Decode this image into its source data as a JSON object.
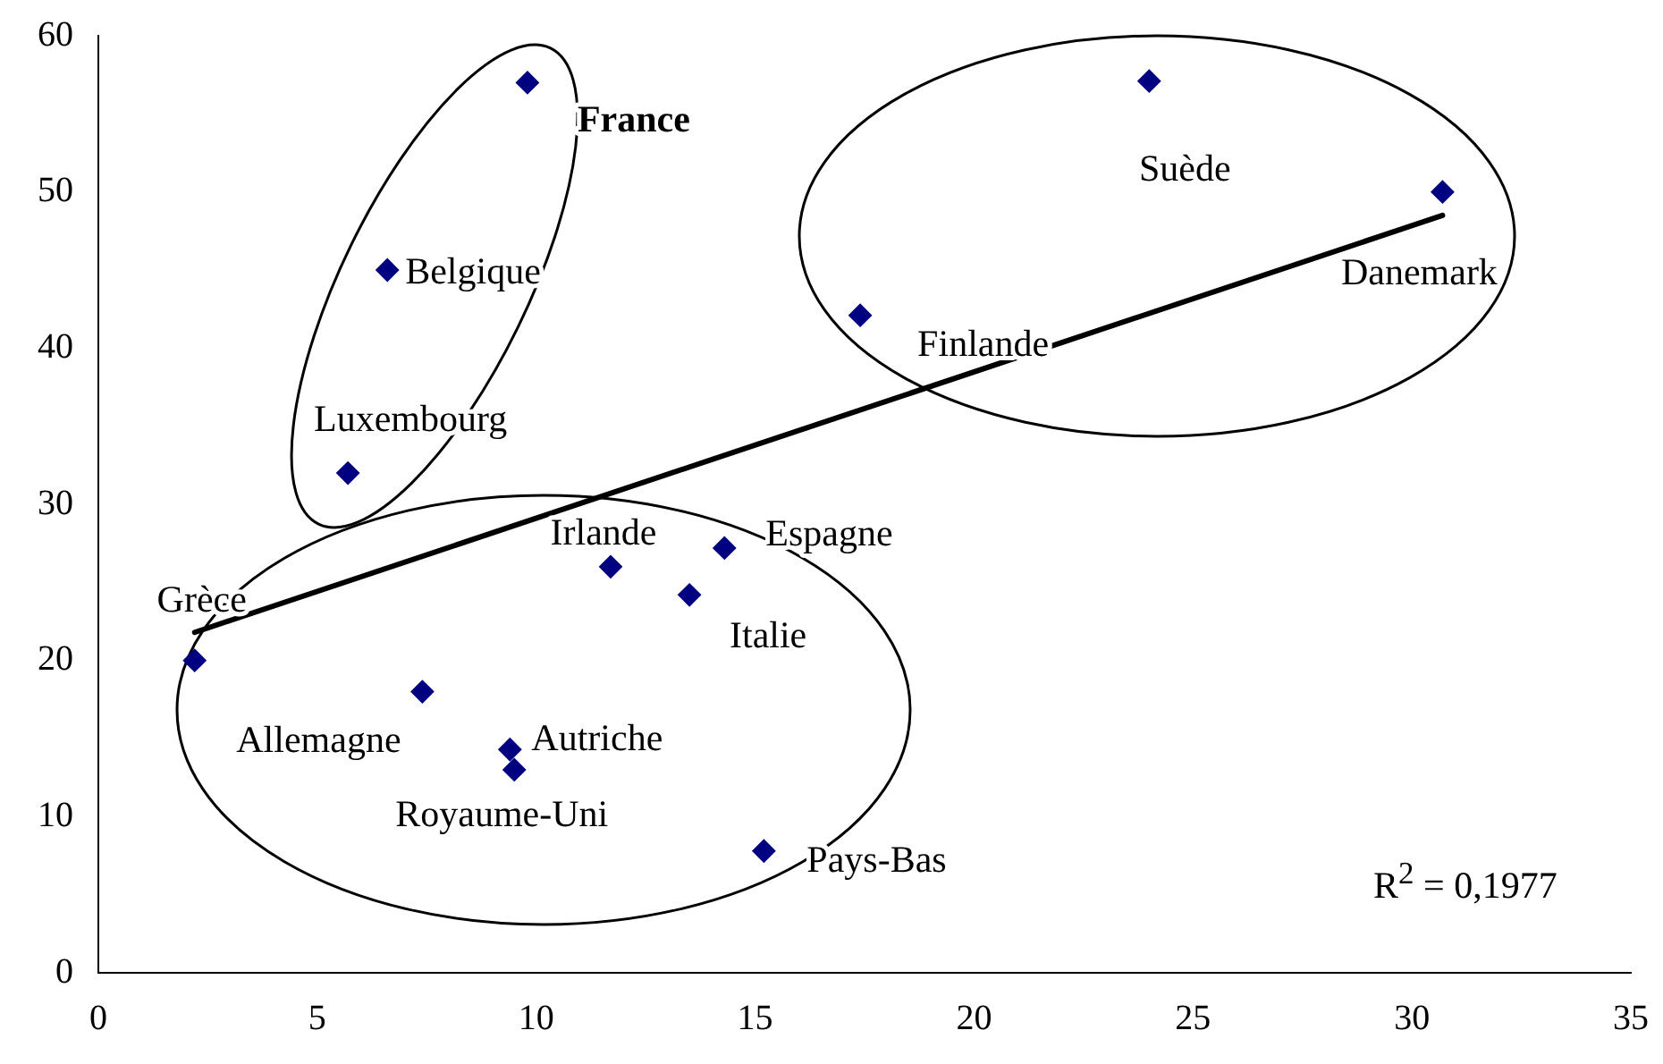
{
  "chart_data": {
    "type": "scatter",
    "xlim": [
      0,
      35
    ],
    "xticks": [
      0,
      5,
      10,
      15,
      20,
      25,
      30,
      35
    ],
    "ylim": [
      0,
      60
    ],
    "yticks": [
      0,
      10,
      20,
      30,
      40,
      50,
      60
    ],
    "grid": false,
    "legend": false,
    "marker": "diamond",
    "series": [
      {
        "color": "#000080",
        "x": [
          9.8,
          6.6,
          5.7,
          2.2,
          7.4,
          9.4,
          9.5,
          11.7,
          13.5,
          14.3,
          15.2,
          17.4,
          24.0,
          30.7
        ],
        "values": [
          57,
          45,
          32,
          20,
          18,
          14.3,
          13,
          26,
          24.2,
          27.2,
          7.8,
          42.1,
          57.1,
          50
        ]
      },
      {
        "type": "line",
        "color": "#000000",
        "x": [
          2.2,
          30.7
        ],
        "values": [
          21.8,
          48.5
        ],
        "marker": "none",
        "line_style": "solid"
      }
    ],
    "annotations": [
      {
        "text": "France",
        "x": 9.8,
        "y": 57
      },
      {
        "text": "Belgique",
        "x": 6.6,
        "y": 45
      },
      {
        "text": "Luxembourg",
        "x": 5.7,
        "y": 32
      },
      {
        "text": "Grèce",
        "x": 2.2,
        "y": 20
      },
      {
        "text": "Allemagne",
        "x": 7.4,
        "y": 18
      },
      {
        "text": "Autriche",
        "x": 9.4,
        "y": 14.3
      },
      {
        "text": "Royaume-Uni",
        "x": 9.5,
        "y": 13
      },
      {
        "text": "Irlande",
        "x": 11.7,
        "y": 26
      },
      {
        "text": "Italie",
        "x": 13.5,
        "y": 24.2
      },
      {
        "text": "Espagne",
        "x": 14.3,
        "y": 27.2
      },
      {
        "text": "Pays-Bas",
        "x": 15.2,
        "y": 7.8
      },
      {
        "text": "Finlande",
        "x": 17.4,
        "y": 42.1
      },
      {
        "text": "Suède",
        "x": 24.0,
        "y": 57.1
      },
      {
        "text": "Danemark",
        "x": 30.7,
        "y": 50
      },
      "R$^{2}$ = 0,1977"
    ]
  }
}
